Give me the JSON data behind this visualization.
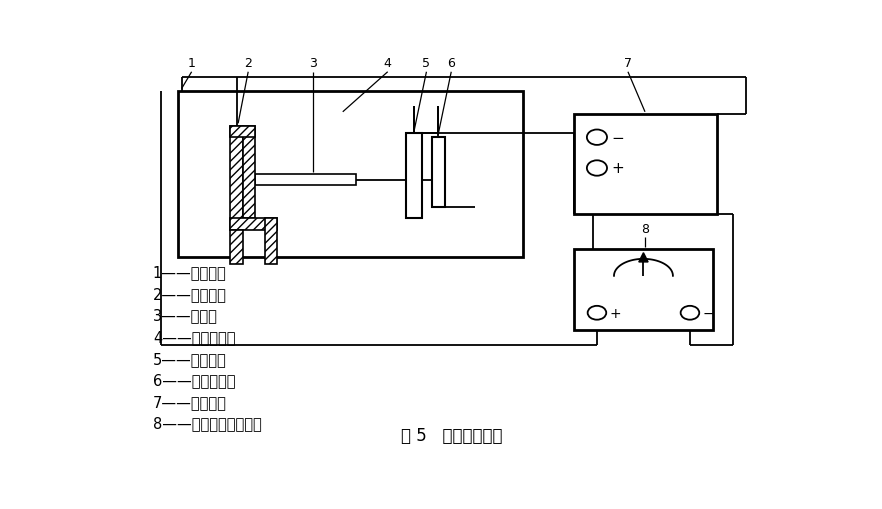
{
  "title": "图 5   电解脱锡装置",
  "bg_color": "#ffffff",
  "line_color": "#000000",
  "legend_items": [
    "1——脱锡槽；",
    "2——试样夹；",
    "3——试样；",
    "4——脱锡溶液；",
    "5——碳电极；",
    "6——参考电极；",
    "7——记录仪；",
    "8——恒电流直流电源。"
  ]
}
